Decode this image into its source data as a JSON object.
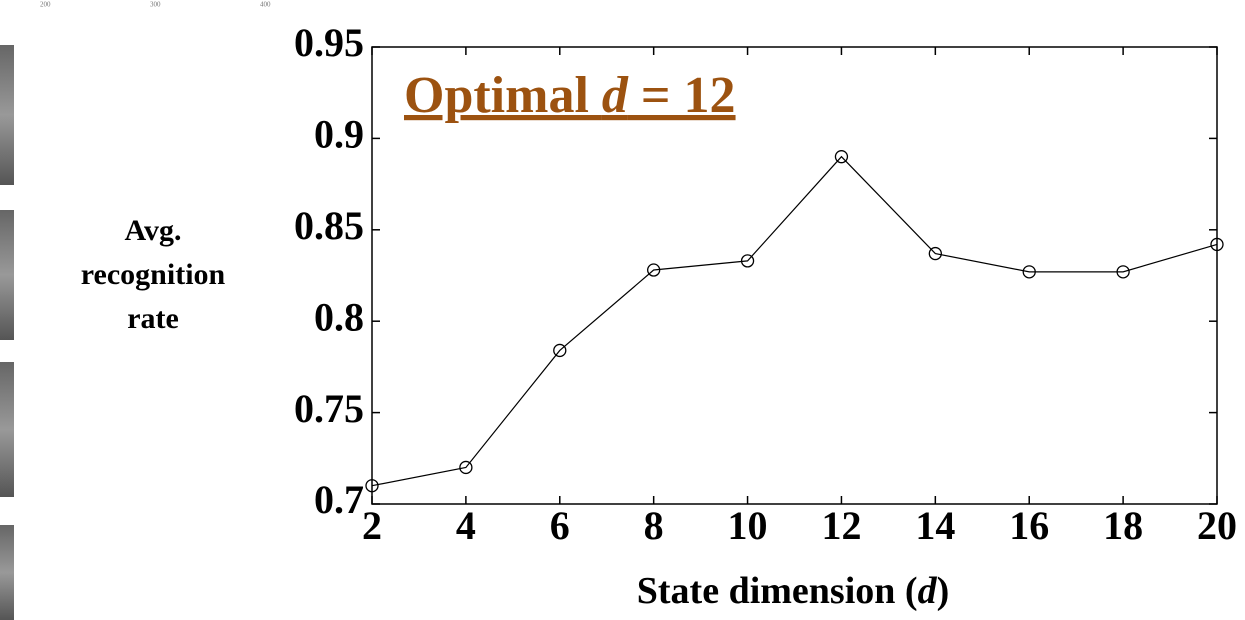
{
  "chart_data": {
    "type": "line",
    "annotation": [
      "Optimal ",
      "d",
      " = 12"
    ],
    "annotation_color": "#9c5210",
    "x_label": [
      "State dimension (",
      "d",
      ")"
    ],
    "y_label": [
      "Avg.",
      "recognition",
      "rate"
    ],
    "background_axis_labels": [
      "200",
      "300",
      "400"
    ],
    "x": [
      2,
      4,
      6,
      8,
      10,
      12,
      14,
      16,
      18,
      20
    ],
    "series": [
      {
        "color": "#000000",
        "values": [
          0.71,
          0.72,
          0.784,
          0.828,
          0.833,
          0.89,
          0.837,
          0.827,
          0.827,
          0.842
        ]
      }
    ],
    "xlim": [
      2,
      20
    ],
    "ylim": [
      0.7,
      0.95
    ],
    "xticks": [
      2,
      4,
      6,
      8,
      10,
      12,
      14,
      16,
      18,
      20
    ],
    "yticks": [
      0.7,
      0.75,
      0.8,
      0.85,
      0.9,
      0.95
    ],
    "marker": "open-circle"
  }
}
